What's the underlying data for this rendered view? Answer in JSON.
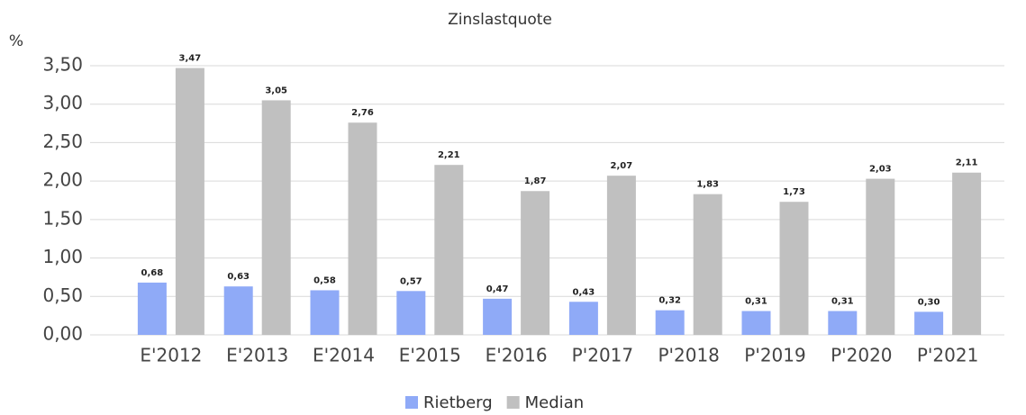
{
  "chart_data": {
    "type": "bar",
    "title": "Zinslastquote",
    "y_label": "%",
    "categories": [
      "E'2012",
      "E'2013",
      "E'2014",
      "E'2015",
      "E'2016",
      "P'2017",
      "P'2018",
      "P'2019",
      "P'2020",
      "P'2021"
    ],
    "series": [
      {
        "name": "Rietberg",
        "color": "#8faaf7",
        "values": [
          0.68,
          0.63,
          0.58,
          0.57,
          0.47,
          0.43,
          0.32,
          0.31,
          0.31,
          0.3
        ],
        "value_labels": [
          "0,68",
          "0,63",
          "0,58",
          "0,57",
          "0,47",
          "0,43",
          "0,32",
          "0,31",
          "0,31",
          "0,30"
        ]
      },
      {
        "name": "Median",
        "color": "#c0c0c0",
        "values": [
          3.47,
          3.05,
          2.76,
          2.21,
          1.87,
          2.07,
          1.83,
          1.73,
          2.03,
          2.11
        ],
        "value_labels": [
          "3,47",
          "3,05",
          "2,76",
          "2,21",
          "1,87",
          "2,07",
          "1,83",
          "1,73",
          "2,03",
          "2,11"
        ]
      }
    ],
    "ylim": [
      0,
      3.5
    ],
    "yticks": [
      {
        "value": 0,
        "label": "0,00"
      },
      {
        "value": 0.5,
        "label": "0,50"
      },
      {
        "value": 1,
        "label": "1,00"
      },
      {
        "value": 1.5,
        "label": "1,50"
      },
      {
        "value": 2,
        "label": "2,00"
      },
      {
        "value": 2.5,
        "label": "2,50"
      },
      {
        "value": 3,
        "label": "3,00"
      },
      {
        "value": 3.5,
        "label": "3,50"
      }
    ],
    "grid": true,
    "legend": "bottom"
  }
}
